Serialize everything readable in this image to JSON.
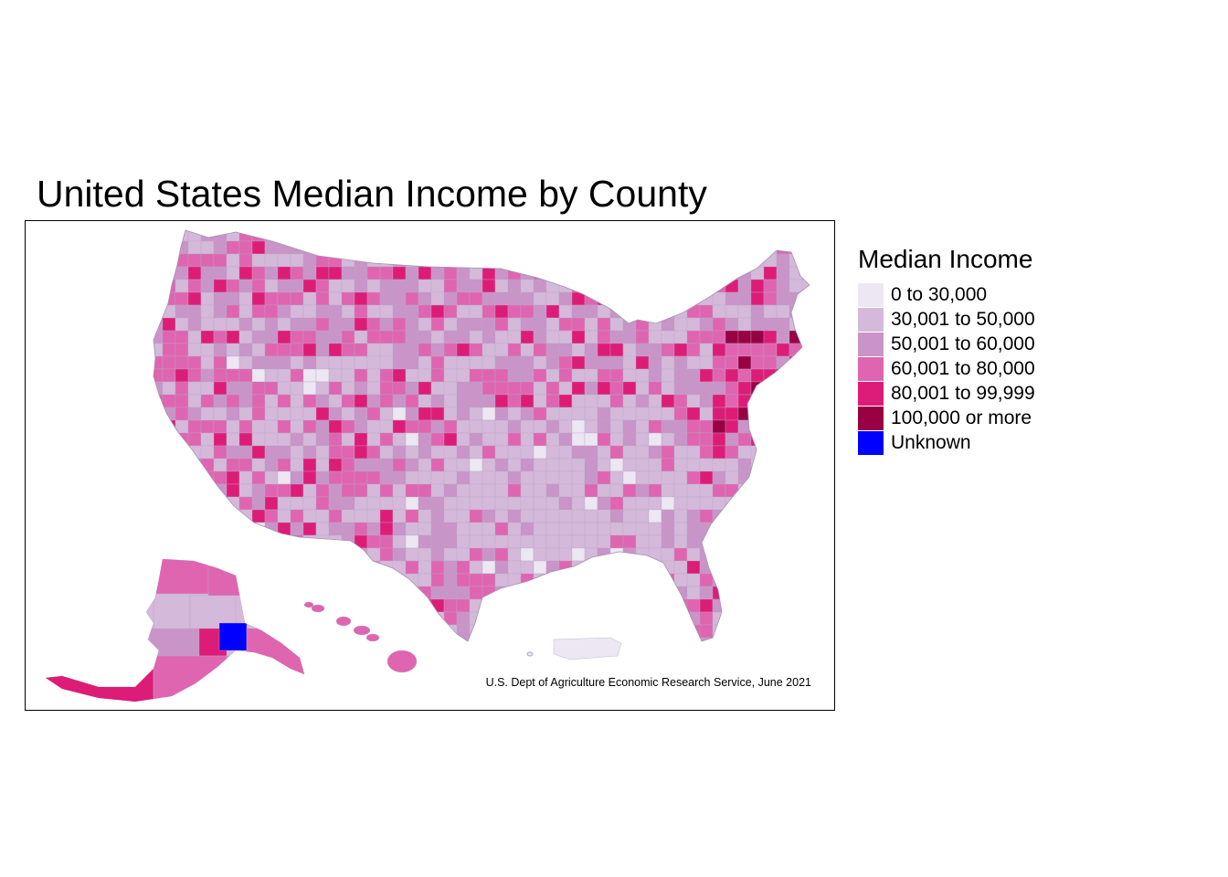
{
  "title": "United States Median Income by County",
  "source": "U.S. Dept of Agriculture Economic Research Service, June 2021",
  "legend": {
    "title": "Median Income",
    "items": [
      {
        "label": "0 to 30,000",
        "color": "#ece7f2"
      },
      {
        "label": "30,001 to 50,000",
        "color": "#d4b9da"
      },
      {
        "label": "50,001 to 60,000",
        "color": "#c994c7"
      },
      {
        "label": "60,001 to 80,000",
        "color": "#df65b0"
      },
      {
        "label": "80,001 to 99,999",
        "color": "#dd1c77"
      },
      {
        "label": "100,000 or more",
        "color": "#980043"
      },
      {
        "label": "Unknown",
        "color": "#0000ff"
      }
    ]
  },
  "border_color": "#b9a6c4"
}
